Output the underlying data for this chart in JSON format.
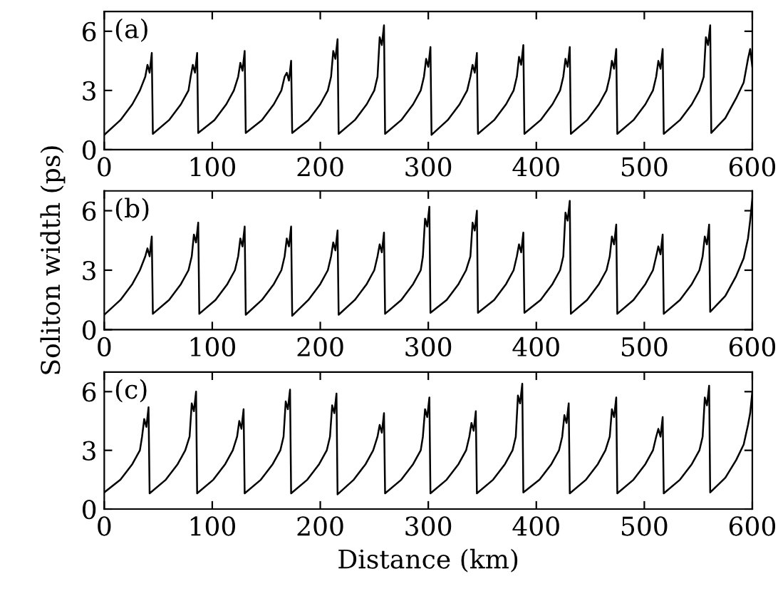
{
  "chart_data": [
    {
      "type": "line",
      "annotations": [
        "(a)"
      ],
      "xlim": [
        0,
        600
      ],
      "xticks": [
        0,
        100,
        200,
        300,
        400,
        500,
        600
      ],
      "ylim": [
        0,
        7
      ],
      "yticks": [
        0,
        3,
        6
      ],
      "grid": false,
      "series": [
        {
          "color": "#000000",
          "x": [
            0,
            15,
            26,
            33,
            38,
            40,
            42,
            44,
            45,
            60,
            71,
            78,
            80,
            82,
            84,
            86,
            87,
            102,
            113,
            120,
            124,
            126,
            128,
            130,
            131,
            146,
            157,
            164,
            167,
            169,
            171,
            173,
            174,
            189,
            200,
            207,
            210,
            212,
            214,
            216,
            217,
            232,
            243,
            250,
            253,
            255,
            257,
            259,
            260,
            275,
            286,
            293,
            296,
            298,
            300,
            302,
            303,
            318,
            329,
            336,
            339,
            341,
            343,
            345,
            346,
            361,
            372,
            379,
            382,
            384,
            386,
            388,
            389,
            404,
            415,
            422,
            425,
            427,
            429,
            431,
            432,
            447,
            458,
            465,
            468,
            470,
            472,
            474,
            475,
            490,
            501,
            508,
            511,
            513,
            515,
            517,
            518,
            533,
            544,
            551,
            555,
            557,
            559,
            561,
            562,
            575,
            585,
            592,
            596,
            598,
            600
          ],
          "values": [
            0.75,
            1.5,
            2.3,
            3.0,
            3.7,
            4.3,
            3.9,
            4.9,
            0.8,
            1.5,
            2.3,
            3.0,
            3.7,
            4.3,
            3.9,
            4.9,
            0.85,
            1.5,
            2.3,
            3.0,
            3.7,
            4.4,
            4.0,
            5.0,
            0.85,
            1.5,
            2.3,
            3.0,
            3.7,
            3.9,
            3.5,
            4.5,
            0.85,
            1.5,
            2.3,
            3.0,
            3.7,
            5.0,
            4.6,
            5.6,
            0.8,
            1.5,
            2.3,
            3.0,
            3.7,
            5.7,
            5.3,
            6.3,
            0.8,
            1.5,
            2.3,
            3.0,
            3.7,
            4.6,
            4.2,
            5.2,
            0.75,
            1.5,
            2.3,
            3.0,
            3.7,
            4.3,
            3.9,
            4.9,
            0.8,
            1.5,
            2.3,
            3.0,
            3.7,
            4.7,
            4.3,
            5.3,
            0.8,
            1.5,
            2.3,
            3.0,
            3.7,
            4.6,
            4.2,
            5.2,
            0.8,
            1.5,
            2.3,
            3.0,
            3.7,
            4.5,
            4.1,
            5.1,
            0.8,
            1.5,
            2.3,
            3.0,
            3.7,
            4.5,
            4.1,
            5.1,
            0.8,
            1.5,
            2.3,
            3.0,
            3.7,
            5.7,
            5.3,
            6.3,
            0.85,
            1.6,
            2.6,
            3.4,
            4.6,
            5.1,
            4.2
          ]
        }
      ]
    },
    {
      "type": "line",
      "annotations": [
        "(b)"
      ],
      "ylabel": "Soliton width (ps)",
      "xlim": [
        0,
        600
      ],
      "xticks": [
        0,
        100,
        200,
        300,
        400,
        500,
        600
      ],
      "ylim": [
        0,
        7
      ],
      "yticks": [
        0,
        3,
        6
      ],
      "grid": false,
      "series": [
        {
          "color": "#000000",
          "x": [
            0,
            15,
            26,
            33,
            38,
            40,
            42,
            44,
            45,
            60,
            71,
            78,
            81,
            83,
            85,
            87,
            88,
            103,
            114,
            121,
            124,
            126,
            128,
            130,
            131,
            146,
            157,
            164,
            167,
            169,
            171,
            173,
            174,
            189,
            200,
            207,
            210,
            212,
            214,
            216,
            217,
            232,
            243,
            250,
            253,
            255,
            257,
            259,
            260,
            275,
            286,
            293,
            295,
            297,
            299,
            301,
            302,
            317,
            328,
            335,
            339,
            341,
            343,
            345,
            346,
            361,
            372,
            379,
            382,
            384,
            386,
            388,
            389,
            404,
            415,
            422,
            425,
            427,
            429,
            431,
            432,
            447,
            458,
            465,
            468,
            470,
            472,
            474,
            475,
            490,
            501,
            508,
            511,
            513,
            515,
            517,
            518,
            533,
            544,
            551,
            554,
            556,
            558,
            560,
            561,
            575,
            585,
            592,
            596,
            598,
            600
          ],
          "values": [
            0.75,
            1.5,
            2.3,
            3.0,
            3.7,
            4.1,
            3.7,
            4.7,
            0.8,
            1.5,
            2.3,
            3.0,
            3.7,
            4.8,
            4.4,
            5.4,
            0.8,
            1.5,
            2.3,
            3.0,
            3.7,
            4.6,
            4.2,
            5.2,
            0.75,
            1.5,
            2.3,
            3.0,
            3.7,
            4.6,
            4.2,
            5.2,
            0.7,
            1.5,
            2.3,
            3.0,
            3.7,
            4.4,
            4.0,
            5.0,
            0.75,
            1.5,
            2.3,
            3.0,
            3.7,
            4.3,
            3.9,
            4.9,
            0.8,
            1.5,
            2.3,
            3.0,
            3.7,
            5.6,
            5.2,
            6.2,
            0.85,
            1.5,
            2.3,
            3.0,
            3.7,
            5.4,
            5.0,
            6.0,
            0.85,
            1.5,
            2.3,
            3.0,
            3.7,
            4.3,
            3.9,
            4.9,
            0.85,
            1.5,
            2.3,
            3.0,
            3.7,
            5.9,
            5.5,
            6.5,
            0.8,
            1.5,
            2.3,
            3.0,
            3.7,
            4.7,
            4.3,
            5.3,
            0.8,
            1.5,
            2.3,
            3.0,
            3.7,
            4.2,
            3.8,
            4.8,
            0.8,
            1.5,
            2.3,
            3.0,
            3.7,
            4.7,
            4.3,
            5.3,
            0.9,
            1.7,
            2.7,
            3.6,
            4.6,
            5.5,
            6.6
          ]
        }
      ]
    },
    {
      "type": "line",
      "annotations": [
        "(c)"
      ],
      "xlabel": "Distance (km)",
      "xlim": [
        0,
        600
      ],
      "xticks": [
        0,
        100,
        200,
        300,
        400,
        500,
        600
      ],
      "ylim": [
        0,
        7
      ],
      "yticks": [
        0,
        3,
        6
      ],
      "grid": false,
      "series": [
        {
          "color": "#000000",
          "x": [
            0,
            15,
            26,
            33,
            35,
            37,
            39,
            41,
            42,
            57,
            68,
            75,
            79,
            81,
            83,
            85,
            86,
            101,
            112,
            119,
            123,
            125,
            127,
            129,
            130,
            145,
            156,
            163,
            166,
            168,
            170,
            172,
            173,
            188,
            199,
            206,
            209,
            211,
            213,
            215,
            216,
            231,
            242,
            249,
            253,
            255,
            257,
            259,
            260,
            275,
            286,
            293,
            295,
            297,
            299,
            301,
            302,
            317,
            328,
            335,
            338,
            340,
            342,
            344,
            345,
            360,
            371,
            378,
            381,
            383,
            385,
            387,
            388,
            403,
            414,
            421,
            424,
            426,
            428,
            430,
            431,
            446,
            457,
            464,
            468,
            470,
            472,
            474,
            475,
            490,
            501,
            508,
            511,
            513,
            515,
            517,
            518,
            533,
            544,
            551,
            554,
            556,
            558,
            560,
            561,
            575,
            585,
            592,
            596,
            598,
            600
          ],
          "values": [
            0.85,
            1.5,
            2.3,
            3.0,
            3.7,
            4.6,
            4.2,
            5.2,
            0.8,
            1.5,
            2.3,
            3.0,
            3.7,
            5.4,
            5.0,
            6.0,
            0.8,
            1.5,
            2.3,
            3.0,
            3.7,
            4.5,
            4.1,
            5.1,
            0.8,
            1.5,
            2.3,
            3.0,
            3.7,
            5.5,
            5.1,
            6.1,
            0.8,
            1.5,
            2.3,
            3.0,
            3.7,
            5.3,
            4.9,
            5.9,
            0.75,
            1.5,
            2.3,
            3.0,
            3.7,
            4.3,
            3.9,
            4.9,
            0.8,
            1.5,
            2.3,
            3.0,
            3.7,
            5.1,
            4.7,
            5.7,
            0.8,
            1.5,
            2.3,
            3.0,
            3.7,
            4.4,
            4.0,
            5.0,
            0.8,
            1.5,
            2.3,
            3.0,
            3.7,
            5.8,
            5.4,
            6.4,
            0.85,
            1.5,
            2.3,
            3.0,
            3.7,
            4.8,
            4.4,
            5.4,
            0.8,
            1.5,
            2.3,
            3.0,
            3.7,
            5.1,
            4.7,
            5.7,
            0.8,
            1.5,
            2.3,
            3.0,
            3.7,
            4.1,
            3.7,
            4.7,
            0.8,
            1.5,
            2.3,
            3.0,
            3.7,
            5.7,
            5.3,
            6.3,
            0.85,
            1.6,
            2.5,
            3.3,
            4.3,
            4.9,
            6.0
          ]
        }
      ]
    }
  ]
}
